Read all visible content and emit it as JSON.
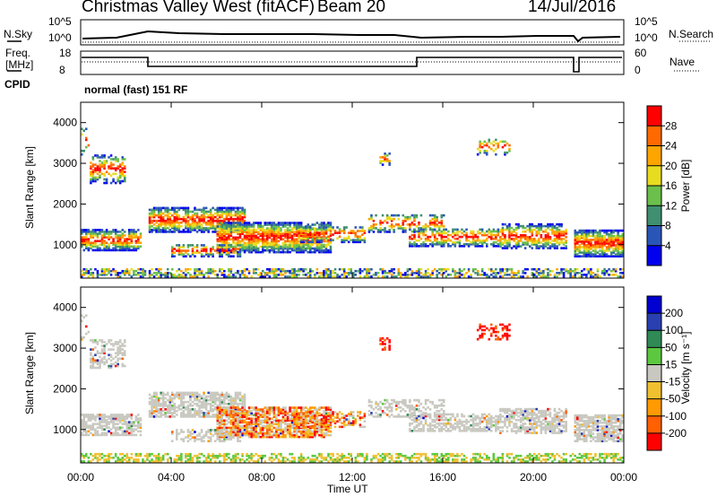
{
  "header": {
    "station": "Christmas Valley West (fitACF)",
    "beam": "Beam 20",
    "date": "14/Jul/2016"
  },
  "noise_panel": {
    "left_label": "N.Sky",
    "right_label": "N.Search",
    "left_ticks": [
      "10^5",
      "10^0"
    ],
    "right_ticks": [
      "10^5",
      "10^0"
    ]
  },
  "freq_panel": {
    "left_label_1": "Freq.",
    "left_label_2": "[MHz]",
    "right_label": "Nave",
    "left_ticks": [
      "18",
      "8"
    ],
    "right_ticks": [
      "60",
      "0"
    ]
  },
  "cpid_panel": {
    "label": "CPID",
    "value": "normal (fast) 151 RF"
  },
  "colors": {
    "power": [
      "#0000ee",
      "#2a55b8",
      "#3f8f70",
      "#6ac04a",
      "#e8dc20",
      "#ffa500",
      "#ff6a00",
      "#ff0000"
    ],
    "velocity": [
      "#ff0000",
      "#ff6000",
      "#ff9a00",
      "#f0c030",
      "#c8c8c0",
      "#5cc840",
      "#2f8a55",
      "#2a3fb0",
      "#0000d0"
    ],
    "ground_scatter": "#c8c8c0"
  },
  "chart_data": [
    {
      "type": "heatmap",
      "title": "",
      "xlabel": "",
      "ylabel": "Slant Range [km]",
      "x_ticks": [
        "00:00",
        "04:00",
        "08:00",
        "12:00",
        "16:00",
        "20:00",
        "00:00"
      ],
      "y_ticks": [
        "1000",
        "2000",
        "3000",
        "4000"
      ],
      "xlim_hours": [
        0,
        24
      ],
      "ylim_km": [
        180,
        4500
      ],
      "colorbar": {
        "label": "Power [dB]",
        "ticks": [
          "4",
          "8",
          "12",
          "16",
          "20",
          "24",
          "28"
        ]
      }
    },
    {
      "type": "heatmap",
      "title": "",
      "xlabel": "Time UT",
      "ylabel": "Slant Range [km]",
      "x_ticks": [
        "00:00",
        "04:00",
        "08:00",
        "12:00",
        "16:00",
        "20:00",
        "00:00"
      ],
      "y_ticks": [
        "1000",
        "2000",
        "3000",
        "4000"
      ],
      "xlim_hours": [
        0,
        24
      ],
      "ylim_km": [
        180,
        4500
      ],
      "colorbar": {
        "label": "Velocity [m s⁻¹]",
        "ticks": [
          "200",
          "100",
          "50",
          "15",
          "-15",
          "-50",
          "-100",
          "-200"
        ]
      }
    }
  ]
}
